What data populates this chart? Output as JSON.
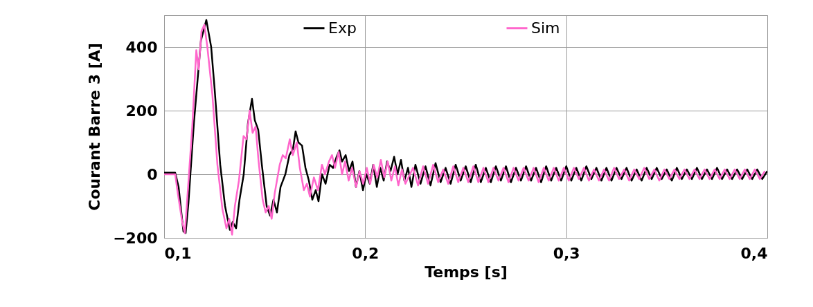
{
  "chart_data": {
    "type": "line",
    "xlabel": "Temps [s]",
    "ylabel": "Courant Barre 3 [A]",
    "xlim": [
      0.1,
      0.4
    ],
    "ylim": [
      -200,
      500
    ],
    "xticks": [
      {
        "value": 0.1,
        "label": "0,1"
      },
      {
        "value": 0.2,
        "label": "0,2"
      },
      {
        "value": 0.3,
        "label": "0,3"
      },
      {
        "value": 0.4,
        "label": "0,4"
      }
    ],
    "yticks": [
      -200,
      0,
      200,
      400
    ],
    "grid": true,
    "legend": "top",
    "marker": "none",
    "line_style": "solid",
    "series": [
      {
        "name": "Exp",
        "color": "#000000",
        "x": [
          0.1,
          0.1055,
          0.1072,
          0.1096,
          0.1107,
          0.1121,
          0.1148,
          0.1183,
          0.121,
          0.1234,
          0.1251,
          0.1279,
          0.1303,
          0.1327,
          0.1341,
          0.1358,
          0.1375,
          0.1396,
          0.1417,
          0.1437,
          0.1451,
          0.1468,
          0.1486,
          0.151,
          0.1527,
          0.1544,
          0.1561,
          0.1579,
          0.1603,
          0.1623,
          0.1641,
          0.1654,
          0.1668,
          0.1686,
          0.1703,
          0.172,
          0.1737,
          0.1754,
          0.1768,
          0.1785,
          0.1803,
          0.1823,
          0.184,
          0.1858,
          0.1872,
          0.1885,
          0.1903,
          0.192,
          0.1937,
          0.1954,
          0.1971,
          0.1989,
          0.2006,
          0.2023,
          0.204,
          0.2058,
          0.2075,
          0.2092,
          0.2109,
          0.2126,
          0.2144,
          0.2161,
          0.2178,
          0.2195,
          0.2213,
          0.223,
          0.225,
          0.2275,
          0.23,
          0.2325,
          0.235,
          0.2375,
          0.24,
          0.2425,
          0.245,
          0.2475,
          0.25,
          0.2525,
          0.255,
          0.2575,
          0.26,
          0.2625,
          0.265,
          0.2675,
          0.27,
          0.2725,
          0.275,
          0.2775,
          0.28,
          0.2825,
          0.285,
          0.2875,
          0.29,
          0.2925,
          0.295,
          0.2975,
          0.3,
          0.3025,
          0.305,
          0.3075,
          0.31,
          0.3125,
          0.315,
          0.3175,
          0.32,
          0.3225,
          0.325,
          0.3275,
          0.33,
          0.3325,
          0.335,
          0.3375,
          0.34,
          0.3425,
          0.345,
          0.3475,
          0.35,
          0.3525,
          0.355,
          0.3575,
          0.36,
          0.3625,
          0.365,
          0.3675,
          0.37,
          0.3725,
          0.375,
          0.3775,
          0.38,
          0.3825,
          0.385,
          0.3875,
          0.39,
          0.3925,
          0.395,
          0.3975,
          0.4
        ],
        "values": [
          5,
          5,
          -40,
          -180,
          -185,
          -90,
          160,
          420,
          485,
          400,
          270,
          30,
          -100,
          -175,
          -150,
          -170,
          -80,
          0,
          160,
          237,
          170,
          140,
          30,
          -100,
          -130,
          -80,
          -120,
          -40,
          0,
          60,
          80,
          135,
          100,
          90,
          20,
          -20,
          -80,
          -50,
          -85,
          0,
          -30,
          30,
          20,
          55,
          75,
          40,
          60,
          10,
          40,
          -40,
          10,
          -50,
          0,
          -30,
          30,
          -40,
          20,
          -20,
          40,
          10,
          55,
          0,
          45,
          -20,
          20,
          -40,
          30,
          -30,
          25,
          -35,
          35,
          -25,
          20,
          -30,
          30,
          -20,
          25,
          -25,
          30,
          -25,
          20,
          -25,
          25,
          -20,
          25,
          -25,
          20,
          -20,
          25,
          -20,
          20,
          -25,
          25,
          -20,
          20,
          -20,
          25,
          -20,
          20,
          -20,
          25,
          -15,
          20,
          -20,
          20,
          -20,
          20,
          -15,
          20,
          -20,
          15,
          -20,
          20,
          -15,
          20,
          -15,
          15,
          -20,
          20,
          -15,
          15,
          -15,
          20,
          -15,
          15,
          -15,
          20,
          -15,
          15,
          -15,
          15,
          -15,
          15,
          -15,
          15,
          -15,
          10
        ]
      },
      {
        "name": "Sim",
        "color": "#ff66cc",
        "x": [
          0.1,
          0.1055,
          0.1068,
          0.109,
          0.1103,
          0.1117,
          0.114,
          0.116,
          0.1172,
          0.1186,
          0.12,
          0.1215,
          0.124,
          0.1265,
          0.129,
          0.131,
          0.1324,
          0.1338,
          0.1352,
          0.1372,
          0.1395,
          0.141,
          0.1425,
          0.144,
          0.1455,
          0.147,
          0.149,
          0.1505,
          0.152,
          0.1535,
          0.155,
          0.1575,
          0.159,
          0.1605,
          0.1625,
          0.164,
          0.166,
          0.1675,
          0.1695,
          0.171,
          0.1725,
          0.1745,
          0.1765,
          0.1785,
          0.18,
          0.182,
          0.1835,
          0.185,
          0.1868,
          0.1885,
          0.19,
          0.1918,
          0.1935,
          0.1955,
          0.1972,
          0.199,
          0.2008,
          0.2025,
          0.2042,
          0.206,
          0.2078,
          0.2095,
          0.2112,
          0.213,
          0.2148,
          0.2165,
          0.2183,
          0.22,
          0.2238,
          0.2263,
          0.2288,
          0.2313,
          0.2338,
          0.2363,
          0.2388,
          0.2413,
          0.2438,
          0.2463,
          0.2488,
          0.2513,
          0.2538,
          0.2563,
          0.2588,
          0.2613,
          0.2638,
          0.2663,
          0.2688,
          0.2713,
          0.2738,
          0.2763,
          0.2788,
          0.2813,
          0.2838,
          0.2863,
          0.2888,
          0.2913,
          0.2938,
          0.2963,
          0.2988,
          0.3013,
          0.3038,
          0.3063,
          0.3088,
          0.3113,
          0.3138,
          0.3163,
          0.3188,
          0.3213,
          0.3238,
          0.3263,
          0.3288,
          0.3313,
          0.3338,
          0.3363,
          0.3388,
          0.3413,
          0.3438,
          0.3463,
          0.3488,
          0.3513,
          0.3538,
          0.3563,
          0.3588,
          0.3613,
          0.3638,
          0.3663,
          0.3688,
          0.3713,
          0.3738,
          0.3763,
          0.3788,
          0.3813,
          0.3838,
          0.3863,
          0.3888,
          0.3913,
          0.3938,
          0.3963,
          0.3988
        ],
        "values": [
          0,
          0,
          -60,
          -150,
          -185,
          -60,
          150,
          390,
          330,
          450,
          470,
          400,
          250,
          30,
          -110,
          -170,
          -140,
          -190,
          -100,
          -20,
          120,
          110,
          200,
          130,
          150,
          40,
          -80,
          -120,
          -100,
          -140,
          -60,
          30,
          60,
          50,
          110,
          60,
          100,
          20,
          -50,
          -30,
          -70,
          -10,
          -50,
          30,
          0,
          40,
          60,
          20,
          70,
          0,
          40,
          -20,
          20,
          -40,
          10,
          -30,
          20,
          -30,
          30,
          -10,
          45,
          -10,
          40,
          -20,
          25,
          -35,
          15,
          -30,
          20,
          -35,
          25,
          -30,
          30,
          -25,
          15,
          -30,
          25,
          -25,
          20,
          -25,
          25,
          -25,
          20,
          -25,
          20,
          -20,
          20,
          -25,
          20,
          -20,
          20,
          -20,
          20,
          -25,
          20,
          -20,
          20,
          -20,
          20,
          -20,
          20,
          -15,
          20,
          -20,
          15,
          -20,
          15,
          -20,
          20,
          -15,
          15,
          -20,
          15,
          -15,
          20,
          -15,
          15,
          -20,
          15,
          -15,
          15,
          -15,
          15,
          -15,
          15,
          -15,
          15,
          -15,
          15,
          -15,
          15,
          -15,
          15,
          -15,
          15,
          -15,
          15,
          -15,
          10
        ]
      }
    ]
  }
}
